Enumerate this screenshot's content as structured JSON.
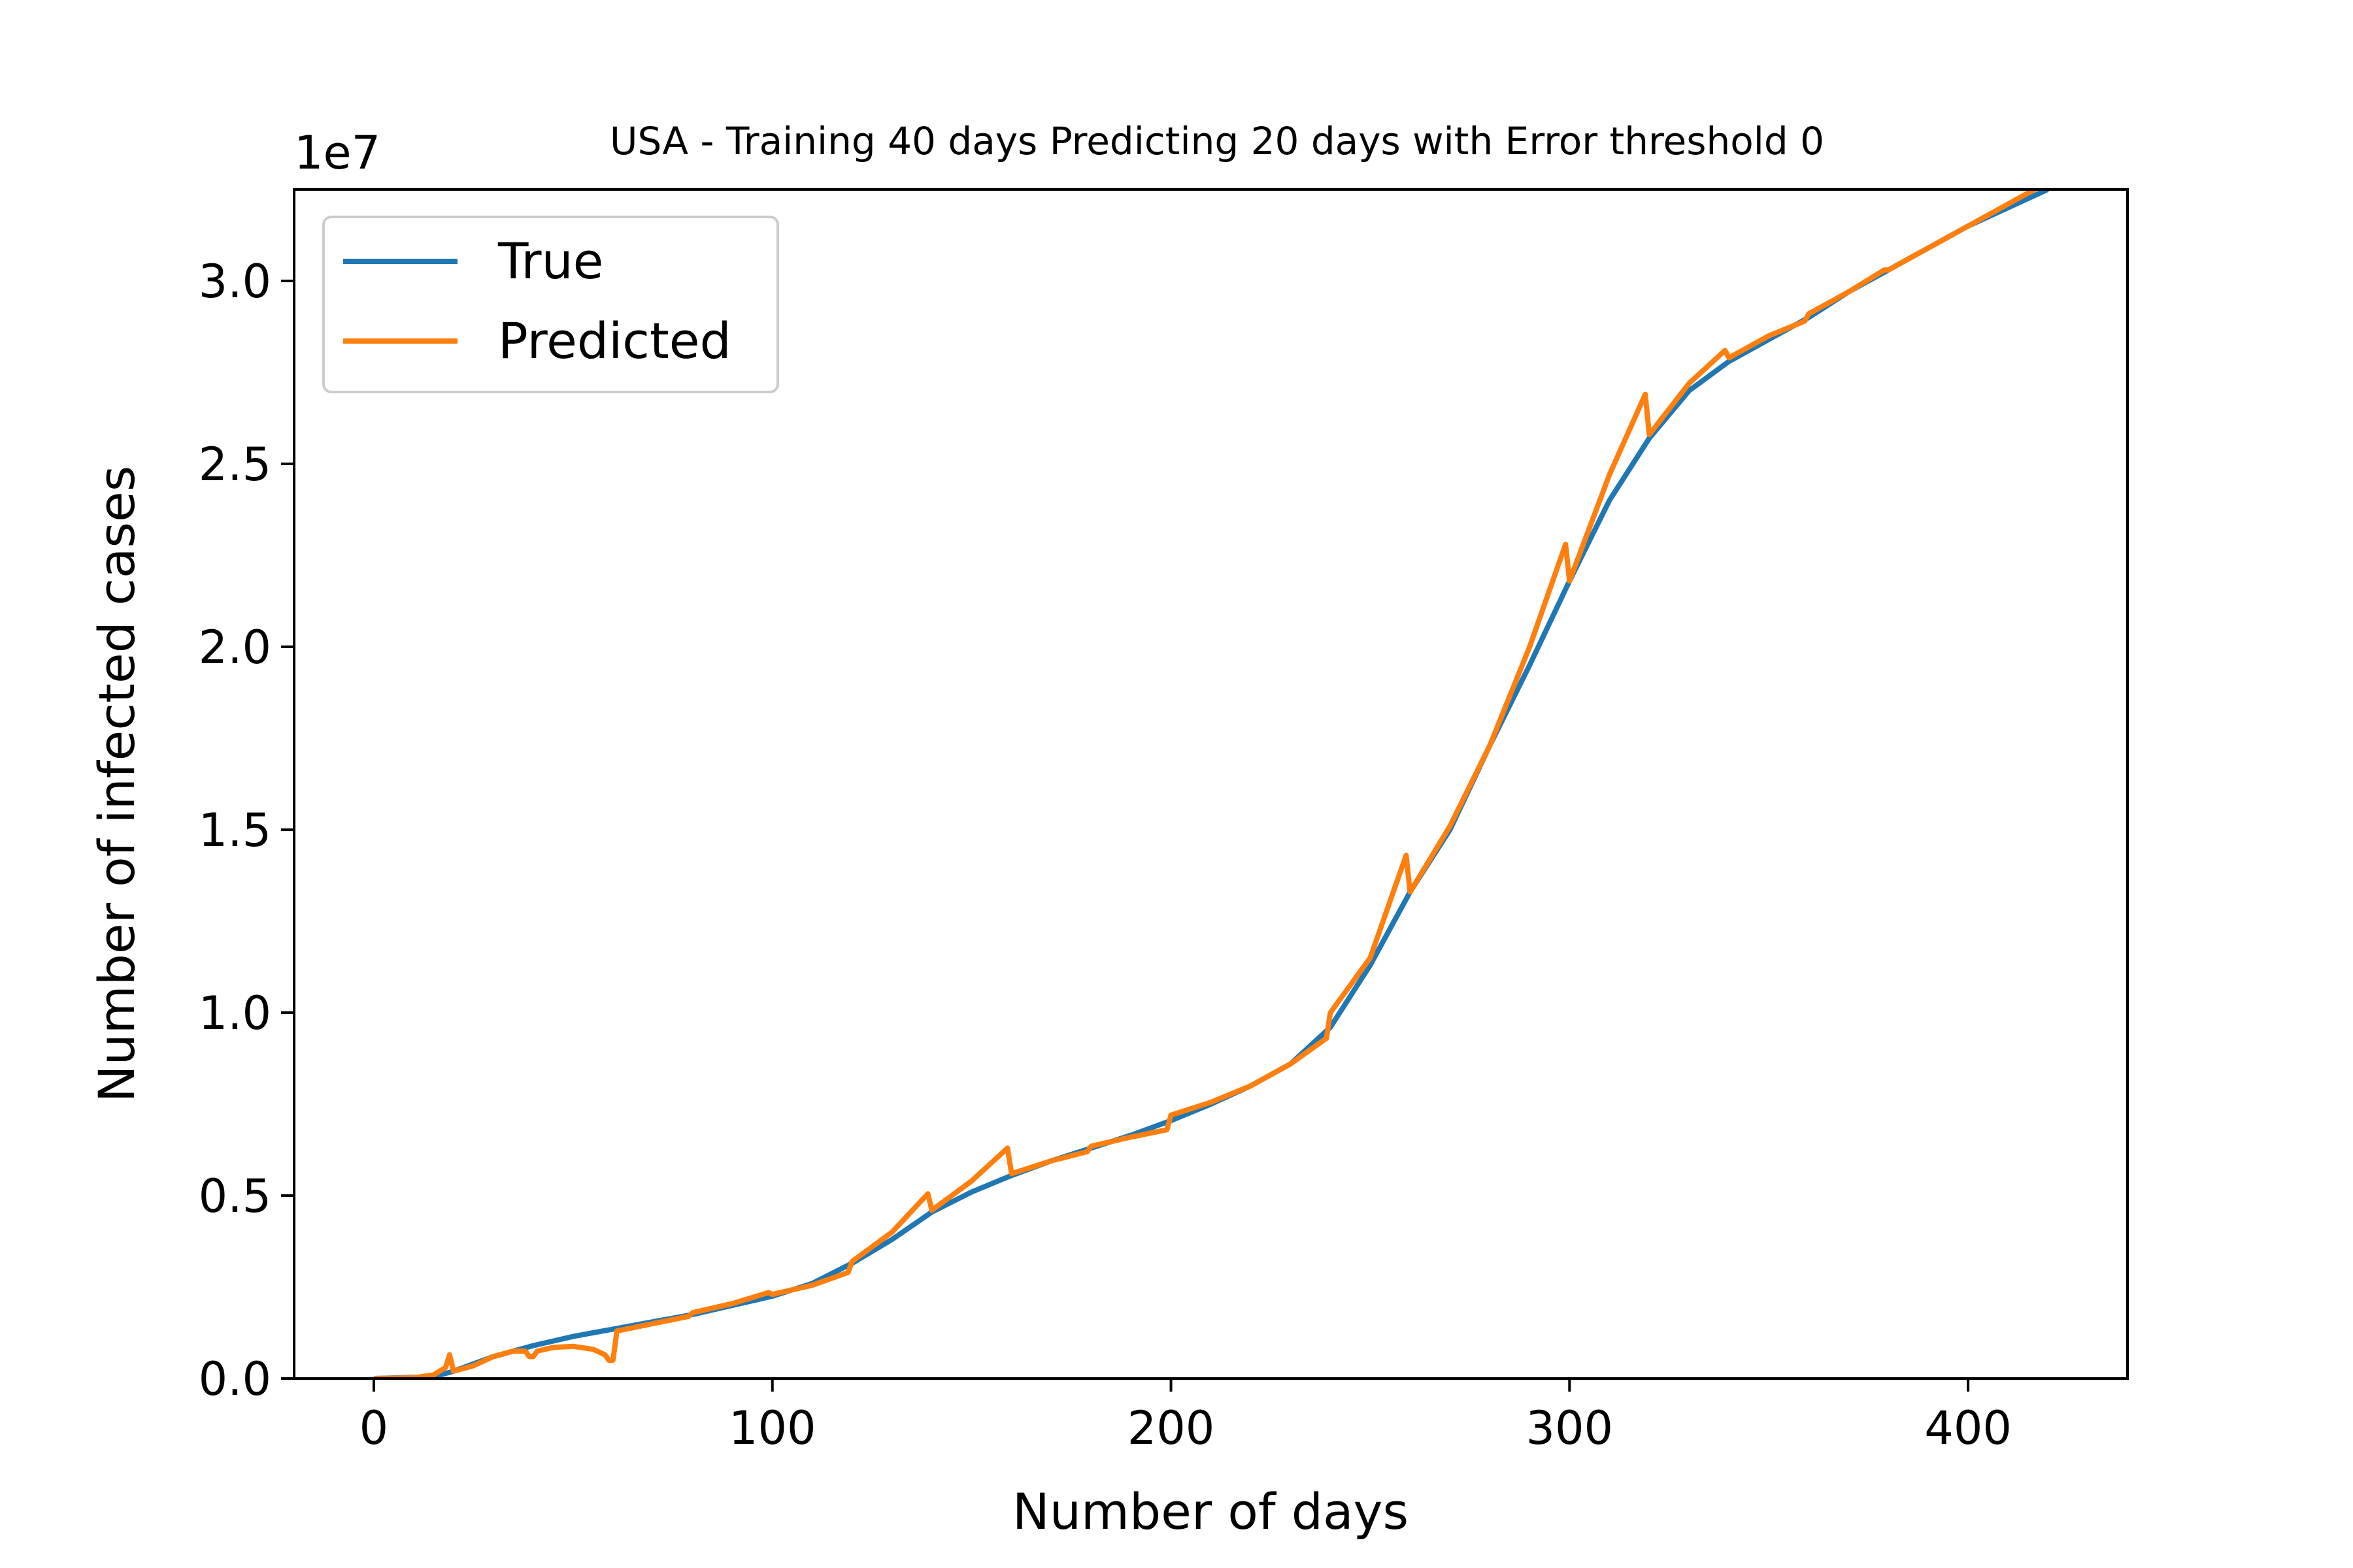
{
  "chart_data": {
    "type": "line",
    "title": "USA - Training 40 days Predicting 20 days with Error threshold 0",
    "xlabel": "Number of days",
    "ylabel": "Number of infected cases",
    "y_offset_label": "1e7",
    "xlim": [
      -20,
      440
    ],
    "ylim": [
      0,
      3.25
    ],
    "x_ticks": [
      0,
      100,
      200,
      300,
      400
    ],
    "x_tick_labels": [
      "0",
      "100",
      "200",
      "300",
      "400"
    ],
    "y_ticks": [
      0,
      0.5,
      1.0,
      1.5,
      2.0,
      2.5,
      3.0
    ],
    "y_tick_labels": [
      "0.0",
      "0.5",
      "1.0",
      "1.5",
      "2.0",
      "2.5",
      "3.0"
    ],
    "grid": false,
    "legend_position": "top-left",
    "series": [
      {
        "name": "True",
        "color": "#1f77b4",
        "points": [
          [
            0,
            0
          ],
          [
            15,
            0.005
          ],
          [
            20,
            0.02
          ],
          [
            30,
            0.06
          ],
          [
            40,
            0.09
          ],
          [
            50,
            0.115
          ],
          [
            60,
            0.135
          ],
          [
            80,
            0.175
          ],
          [
            100,
            0.225
          ],
          [
            110,
            0.26
          ],
          [
            120,
            0.315
          ],
          [
            130,
            0.38
          ],
          [
            140,
            0.455
          ],
          [
            150,
            0.51
          ],
          [
            160,
            0.555
          ],
          [
            170,
            0.595
          ],
          [
            180,
            0.63
          ],
          [
            190,
            0.665
          ],
          [
            200,
            0.705
          ],
          [
            210,
            0.75
          ],
          [
            220,
            0.8
          ],
          [
            230,
            0.86
          ],
          [
            240,
            0.96
          ],
          [
            250,
            1.13
          ],
          [
            260,
            1.33
          ],
          [
            270,
            1.5
          ],
          [
            280,
            1.73
          ],
          [
            290,
            1.95
          ],
          [
            300,
            2.18
          ],
          [
            310,
            2.4
          ],
          [
            320,
            2.57
          ],
          [
            330,
            2.7
          ],
          [
            340,
            2.78
          ],
          [
            350,
            2.84
          ],
          [
            360,
            2.9
          ],
          [
            370,
            2.97
          ],
          [
            380,
            3.03
          ],
          [
            390,
            3.09
          ],
          [
            400,
            3.15
          ],
          [
            410,
            3.2
          ],
          [
            420,
            3.25
          ]
        ]
      },
      {
        "name": "Predicted",
        "color": "#ff7f0e",
        "points": [
          [
            0,
            0
          ],
          [
            10,
            0.002
          ],
          [
            15,
            0.01
          ],
          [
            18,
            0.03
          ],
          [
            19,
            0.065
          ],
          [
            20,
            0.02
          ],
          [
            25,
            0.035
          ],
          [
            30,
            0.06
          ],
          [
            35,
            0.075
          ],
          [
            38,
            0.075
          ],
          [
            39,
            0.06
          ],
          [
            40,
            0.06
          ],
          [
            41,
            0.075
          ],
          [
            45,
            0.085
          ],
          [
            50,
            0.088
          ],
          [
            55,
            0.08
          ],
          [
            58,
            0.065
          ],
          [
            59,
            0.05
          ],
          [
            60,
            0.05
          ],
          [
            61,
            0.13
          ],
          [
            70,
            0.15
          ],
          [
            79,
            0.17
          ],
          [
            80,
            0.18
          ],
          [
            90,
            0.205
          ],
          [
            99,
            0.235
          ],
          [
            100,
            0.23
          ],
          [
            110,
            0.255
          ],
          [
            119,
            0.29
          ],
          [
            120,
            0.32
          ],
          [
            130,
            0.4
          ],
          [
            139,
            0.505
          ],
          [
            140,
            0.46
          ],
          [
            150,
            0.54
          ],
          [
            159,
            0.63
          ],
          [
            160,
            0.56
          ],
          [
            170,
            0.595
          ],
          [
            179,
            0.62
          ],
          [
            180,
            0.635
          ],
          [
            190,
            0.66
          ],
          [
            199,
            0.68
          ],
          [
            200,
            0.72
          ],
          [
            210,
            0.755
          ],
          [
            220,
            0.8
          ],
          [
            230,
            0.86
          ],
          [
            239,
            0.93
          ],
          [
            240,
            1.0
          ],
          [
            250,
            1.15
          ],
          [
            259,
            1.43
          ],
          [
            260,
            1.33
          ],
          [
            270,
            1.51
          ],
          [
            280,
            1.73
          ],
          [
            290,
            2.0
          ],
          [
            299,
            2.28
          ],
          [
            300,
            2.18
          ],
          [
            310,
            2.47
          ],
          [
            319,
            2.69
          ],
          [
            320,
            2.58
          ],
          [
            330,
            2.72
          ],
          [
            339,
            2.81
          ],
          [
            340,
            2.79
          ],
          [
            350,
            2.85
          ],
          [
            359,
            2.89
          ],
          [
            360,
            2.91
          ],
          [
            370,
            2.97
          ],
          [
            379,
            3.03
          ],
          [
            380,
            3.03
          ],
          [
            390,
            3.09
          ],
          [
            400,
            3.15
          ],
          [
            410,
            3.21
          ],
          [
            420,
            3.27
          ]
        ]
      }
    ]
  }
}
